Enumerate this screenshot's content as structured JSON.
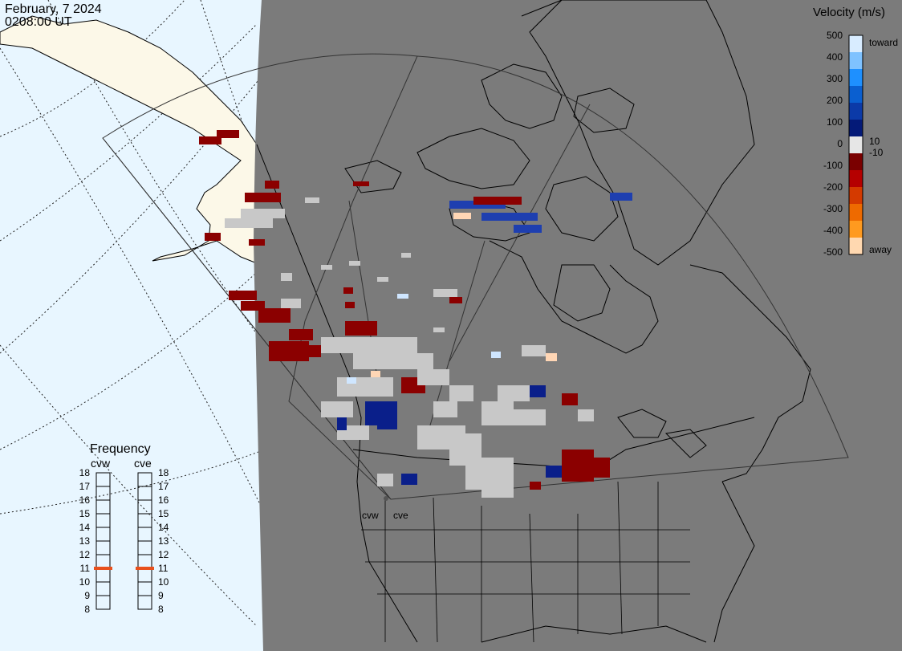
{
  "header": {
    "date": "February, 7 2024",
    "time": "0208:00 UT"
  },
  "legend": {
    "title": "Velocity (m/s)",
    "ticks": [
      "500",
      "400",
      "300",
      "200",
      "100",
      "10",
      "0",
      "-10",
      "-100",
      "-200",
      "-300",
      "-400",
      "-500"
    ],
    "toward_label": "toward",
    "away_label": "away",
    "colors": [
      "#d8ecff",
      "#7fc2ff",
      "#1e90ff",
      "#0a5fd0",
      "#0b3aa8",
      "#041a78",
      "#e6e6e6",
      "#7a0000",
      "#b50000",
      "#d43a00",
      "#ee6a00",
      "#ff9a1f",
      "#ffd8b0"
    ]
  },
  "frequency": {
    "title": "Frequency",
    "radars": [
      {
        "name": "cvw",
        "frequency_mhz": 11
      },
      {
        "name": "cve",
        "frequency_mhz": 11
      }
    ],
    "scale": [
      "18",
      "17",
      "16",
      "15",
      "14",
      "13",
      "12",
      "11",
      "10",
      "9",
      "8"
    ],
    "marker_color": "#e8501c"
  },
  "map": {
    "radar_site_labels": [
      "cvw",
      "cve"
    ],
    "ocean_color": "#e8f6ff",
    "land_color": "#fcf8e8",
    "night_color": "#7b7b7b",
    "scatter_colors": {
      "ground": "#c8c8c8",
      "away": "#8b0000",
      "toward": "#0a1f8a",
      "toward_fast": "#1e3fb0",
      "light_toward": "#cfe6ff",
      "light_away": "#ffd6b5"
    }
  }
}
